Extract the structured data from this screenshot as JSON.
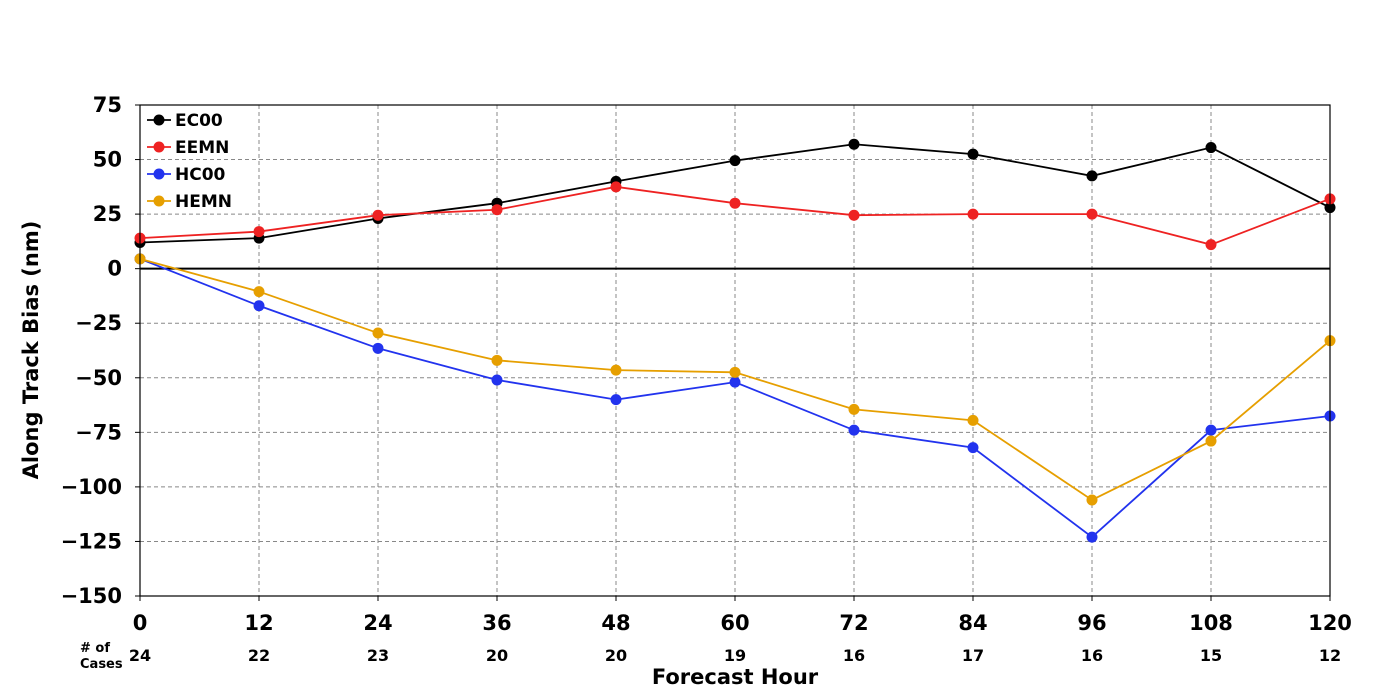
{
  "chart_data": {
    "type": "line",
    "title": "",
    "xlabel": "Forecast Hour",
    "ylabel": "Along Track Bias (nm)",
    "x": [
      0,
      12,
      24,
      36,
      48,
      60,
      72,
      84,
      96,
      108,
      120
    ],
    "xlim": [
      0,
      120
    ],
    "ylim": [
      -150,
      75
    ],
    "yticks": [
      75,
      50,
      25,
      0,
      -25,
      -50,
      -75,
      -100,
      -125,
      -150
    ],
    "ytick_labels": [
      "75",
      "50",
      "25",
      "0",
      "−25",
      "−50",
      "−75",
      "−100",
      "−125",
      "−150"
    ],
    "xtick_labels": [
      "0",
      "12",
      "24",
      "36",
      "48",
      "60",
      "72",
      "84",
      "96",
      "108",
      "120"
    ],
    "grid": true,
    "legend_position": "top-left",
    "case_header": [
      "# of",
      "Cases"
    ],
    "cases": [
      "24",
      "22",
      "23",
      "20",
      "20",
      "19",
      "16",
      "17",
      "16",
      "15",
      "12"
    ],
    "series": [
      {
        "name": "EC00",
        "color": "#000000",
        "values": [
          12,
          14,
          23,
          30,
          40,
          49.5,
          57,
          52.5,
          42.5,
          55.5,
          28
        ]
      },
      {
        "name": "EEMN",
        "color": "#ee2222",
        "values": [
          14,
          17,
          24.5,
          27,
          37.5,
          30,
          24.5,
          25,
          25,
          11,
          32
        ]
      },
      {
        "name": "HC00",
        "color": "#2233ee",
        "values": [
          4.5,
          -17,
          -36.5,
          -51,
          -60,
          -52,
          -74,
          -82,
          -123,
          -74,
          -67.5
        ]
      },
      {
        "name": "HEMN",
        "color": "#e69f00",
        "values": [
          4.5,
          -10.5,
          -29.5,
          -42,
          -46.5,
          -47.5,
          -64.5,
          -69.5,
          -106,
          -79,
          -33
        ]
      }
    ]
  }
}
